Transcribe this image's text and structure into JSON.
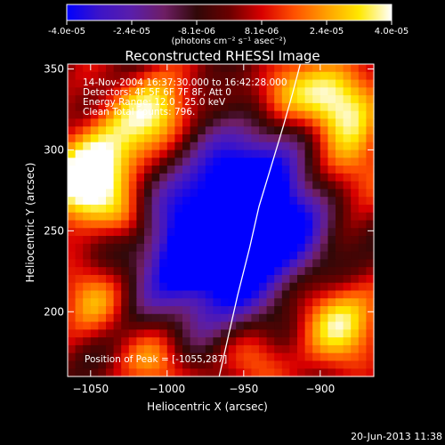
{
  "chart_data": {
    "type": "heatmap",
    "title": "Reconstructed RHESSI Image",
    "xlabel": "Heliocentric X (arcsec)",
    "ylabel": "Heliocentric Y (arcsec)",
    "xlim": [
      -1065,
      -865
    ],
    "ylim": [
      160,
      353
    ],
    "xticks": [
      -1050,
      -1000,
      -950,
      -900
    ],
    "yticks": [
      200,
      250,
      300,
      350
    ],
    "colorbar": {
      "range": [
        -4e-05,
        4e-05
      ],
      "tick_labels": [
        "-4.0e-05",
        "-2.4e-05",
        "-8.1e-06",
        "8.1e-06",
        "2.4e-05",
        "4.0e-05"
      ],
      "unit": "(photons cm⁻² s⁻¹ asec⁻²)",
      "colors": [
        "#0000ff",
        "#3c14c8",
        "#5a1eaa",
        "#6e1e64",
        "#300808",
        "#6a0000",
        "#d80000",
        "#ff5000",
        "#ffa000",
        "#ffe800",
        "#ffffff"
      ]
    },
    "annotations": [
      "14-Nov-2004 16:37:30.000 to 16:42:28.000",
      "Detectors: 4F 5F 6F 7F 8F, Att 0",
      "Energy Range: 12.0 - 25.0 keV",
      "Clean    Total counts: 796."
    ],
    "peak_label": "Position of Peak = [-1055,287]",
    "peak": [
      -1055,
      287
    ],
    "limb_curve": [
      [
        -966,
        160
      ],
      [
        -960,
        185
      ],
      [
        -954,
        210
      ],
      [
        -946,
        240
      ],
      [
        -940,
        265
      ],
      [
        -932,
        290
      ],
      [
        -924,
        315
      ],
      [
        -918,
        335
      ],
      [
        -913,
        353
      ]
    ],
    "grid": false,
    "legend": "none"
  },
  "footer": {
    "timestamp": "20-Jun-2013 11:38"
  }
}
